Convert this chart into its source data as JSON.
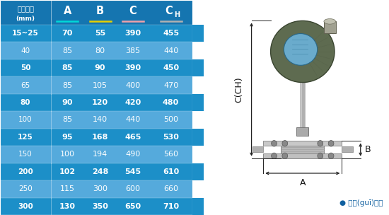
{
  "headers": [
    "儀表口徑\n(mm)",
    "A",
    "B",
    "C",
    "CH"
  ],
  "header_underline_colors": [
    "none",
    "#00d8d8",
    "#e8d000",
    "#f0a0a8",
    "#b0b0b0"
  ],
  "rows": [
    [
      "15~25",
      "70",
      "55",
      "390",
      "455"
    ],
    [
      "40",
      "85",
      "80",
      "385",
      "440"
    ],
    [
      "50",
      "85",
      "90",
      "390",
      "450"
    ],
    [
      "65",
      "85",
      "105",
      "400",
      "470"
    ],
    [
      "80",
      "90",
      "120",
      "420",
      "480"
    ],
    [
      "100",
      "85",
      "140",
      "440",
      "500"
    ],
    [
      "125",
      "95",
      "168",
      "465",
      "530"
    ],
    [
      "150",
      "100",
      "194",
      "490",
      "560"
    ],
    [
      "200",
      "102",
      "248",
      "545",
      "610"
    ],
    [
      "250",
      "115",
      "300",
      "600",
      "660"
    ],
    [
      "300",
      "130",
      "350",
      "650",
      "710"
    ]
  ],
  "dark_row_indices": [
    0,
    2,
    4,
    6,
    8,
    10
  ],
  "dark_bg": "#1c8fc8",
  "light_bg": "#55aadc",
  "header_bg": "#1575b0",
  "white": "#ffffff",
  "fig_bg": "#ddeef8",
  "diag_bg": "#f0f8fc",
  "note_text": "● 常規(guī)儀表",
  "note_color": "#1060a0",
  "arrow_color": "#222222",
  "dim_label_C": "C(CH)",
  "dim_label_B": "B",
  "dim_label_A": "A"
}
